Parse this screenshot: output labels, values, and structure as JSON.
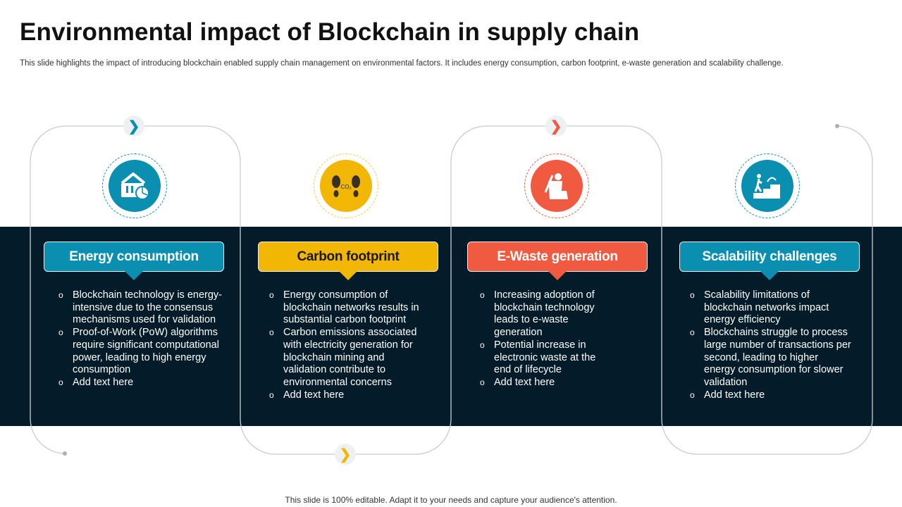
{
  "title": "Environmental impact of Blockchain in supply chain",
  "subtitle": "This slide highlights the impact of introducing blockchain enabled supply chain management on environmental factors. It includes energy consumption, carbon footprint, e-waste generation and scalability challenge.",
  "colors": {
    "teal": "#0a8fb0",
    "yellow": "#f2b705",
    "red": "#f05a41",
    "dark": "#041c29"
  },
  "cards": [
    {
      "label": "Energy consumption",
      "icon": "energy-basket-chart-icon",
      "color": "#0a8fb0",
      "text_color": "#ffffff",
      "bullets": [
        "Blockchain technology is energy-intensive due to the consensus mechanisms used for validation",
        "Proof-of-Work (PoW) algorithms require significant computational power, leading to high energy consumption",
        "Add text here"
      ]
    },
    {
      "label": "Carbon footprint",
      "icon": "co2-footprint-icon",
      "color": "#f2b705",
      "text_color": "#1a1a1a",
      "bullets": [
        "Energy consumption of blockchain networks results in substantial carbon footprint",
        "Carbon emissions associated with electricity generation for blockchain mining and validation contribute to environmental concerns",
        "Add text here"
      ]
    },
    {
      "label": "E-Waste generation",
      "icon": "waste-bin-icon",
      "color": "#f05a41",
      "text_color": "#ffffff",
      "bullets": [
        "Increasing adoption of blockchain technology leads to e-waste generation",
        "Potential increase in electronic waste at the end of lifecycle",
        "Add text here"
      ]
    },
    {
      "label": "Scalability challenges",
      "icon": "climbing-stairs-icon",
      "color": "#0a8fb0",
      "text_color": "#ffffff",
      "bullets": [
        "Scalability limitations of blockchain networks impact energy efficiency",
        "Blockchains struggle to process large number of transactions per second, leading to higher energy consumption for slower validation",
        "Add text here"
      ]
    }
  ],
  "footer": "This slide is 100% editable. Adapt it to your needs and capture your audience's attention."
}
